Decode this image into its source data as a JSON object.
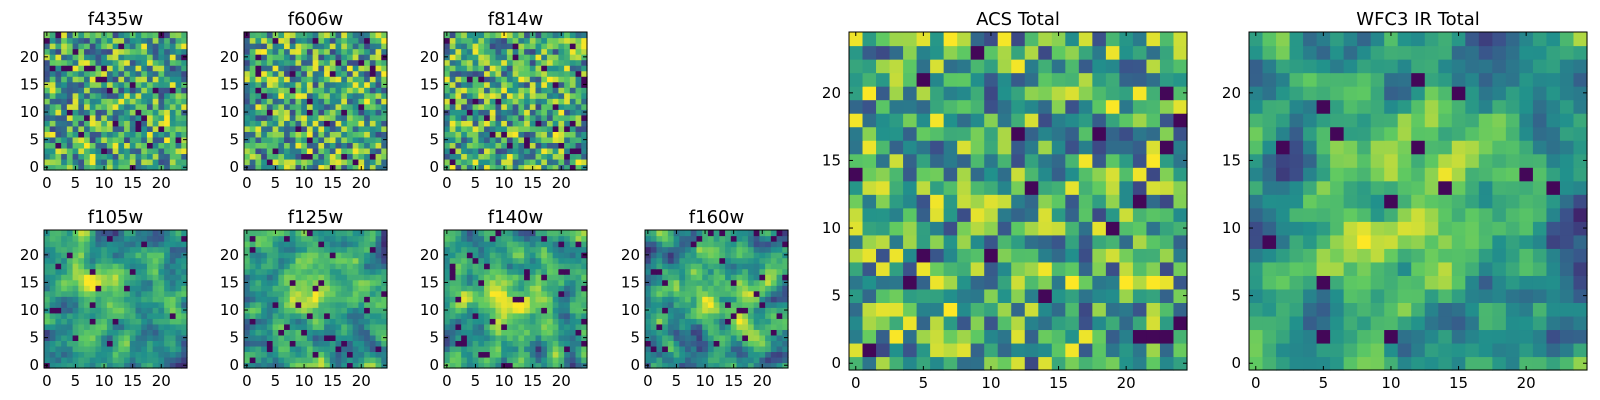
{
  "chart_data": [
    {
      "type": "heatmap",
      "title": "f435w",
      "grid_size": 25,
      "xticks": [
        0,
        5,
        10,
        15,
        20
      ],
      "yticks": [
        0,
        5,
        10,
        15,
        20
      ],
      "seed": 11,
      "smooth": 0,
      "hot_center": [
        12,
        12
      ],
      "hot_strength": 0.0,
      "dark_fraction": 0.05
    },
    {
      "type": "heatmap",
      "title": "f606w",
      "grid_size": 25,
      "xticks": [
        0,
        5,
        10,
        15,
        20
      ],
      "yticks": [
        0,
        5,
        10,
        15,
        20
      ],
      "seed": 23,
      "smooth": 0,
      "hot_center": [
        12,
        12
      ],
      "hot_strength": 0.0,
      "dark_fraction": 0.05
    },
    {
      "type": "heatmap",
      "title": "f814w",
      "grid_size": 25,
      "xticks": [
        0,
        5,
        10,
        15,
        20
      ],
      "yticks": [
        0,
        5,
        10,
        15,
        20
      ],
      "seed": 37,
      "smooth": 0,
      "hot_center": [
        12,
        12
      ],
      "hot_strength": 0.0,
      "dark_fraction": 0.05
    },
    {
      "type": "heatmap",
      "title": "f105w",
      "grid_size": 25,
      "xticks": [
        0,
        5,
        10,
        15,
        20
      ],
      "yticks": [
        0,
        5,
        10,
        15,
        20
      ],
      "seed": 41,
      "smooth": 1,
      "hot_center": [
        11,
        14
      ],
      "hot_strength": 0.25,
      "dark_fraction": 0.04
    },
    {
      "type": "heatmap",
      "title": "f125w",
      "grid_size": 25,
      "xticks": [
        0,
        5,
        10,
        15,
        20
      ],
      "yticks": [
        0,
        5,
        10,
        15,
        20
      ],
      "seed": 53,
      "smooth": 1,
      "hot_center": [
        11,
        14
      ],
      "hot_strength": 0.25,
      "dark_fraction": 0.04
    },
    {
      "type": "heatmap",
      "title": "f140w",
      "grid_size": 25,
      "xticks": [
        0,
        5,
        10,
        15,
        20
      ],
      "yticks": [
        0,
        5,
        10,
        15,
        20
      ],
      "seed": 67,
      "smooth": 1,
      "hot_center": [
        11,
        12
      ],
      "hot_strength": 0.25,
      "dark_fraction": 0.05
    },
    {
      "type": "heatmap",
      "title": "f160w",
      "grid_size": 25,
      "xticks": [
        0,
        5,
        10,
        15,
        20
      ],
      "yticks": [
        0,
        5,
        10,
        15,
        20
      ],
      "seed": 79,
      "smooth": 1,
      "hot_center": [
        12,
        12
      ],
      "hot_strength": 0.3,
      "dark_fraction": 0.05
    },
    {
      "type": "heatmap",
      "title": "ACS Total",
      "grid_size": 25,
      "xticks": [
        0,
        5,
        10,
        15,
        20
      ],
      "yticks": [
        0,
        5,
        10,
        15,
        20
      ],
      "seed": 97,
      "smooth": 0,
      "hot_center": [
        12,
        12
      ],
      "hot_strength": 0.0,
      "dark_fraction": 0.035
    },
    {
      "type": "heatmap",
      "title": "WFC3 IR Total",
      "grid_size": 25,
      "xticks": [
        0,
        5,
        10,
        15,
        20
      ],
      "yticks": [
        0,
        5,
        10,
        15,
        20
      ],
      "seed": 113,
      "smooth": 1,
      "hot_center": [
        12,
        11
      ],
      "hot_strength": 0.35,
      "dark_fraction": 0.03
    }
  ],
  "colormap": "viridis",
  "colors": [
    "#440154",
    "#3b528b",
    "#21918c",
    "#5ec962",
    "#fde725"
  ]
}
